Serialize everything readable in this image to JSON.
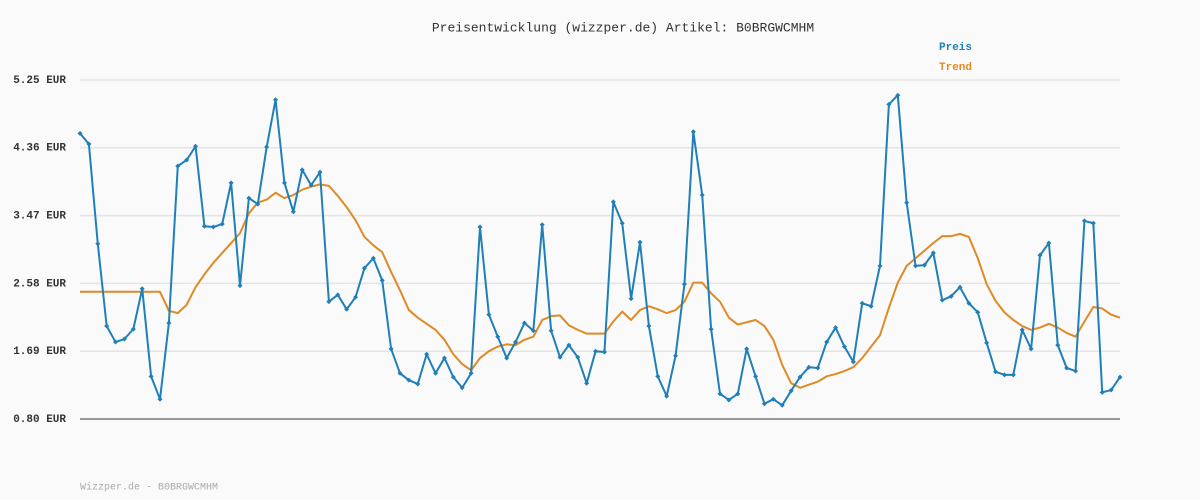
{
  "chart_data": {
    "type": "line",
    "title": "Preisentwicklung (wizzper.de) Artikel: B0BRGWCMHM",
    "footer": "Wizzper.de - B0BRGWCMHM",
    "ylim": [
      0.8,
      5.25
    ],
    "yticks": [
      {
        "value": 0.8,
        "label": "0.80 EUR"
      },
      {
        "value": 1.69,
        "label": "1.69 EUR"
      },
      {
        "value": 2.58,
        "label": "2.58 EUR"
      },
      {
        "value": 3.47,
        "label": "3.47 EUR"
      },
      {
        "value": 4.36,
        "label": "4.36 EUR"
      },
      {
        "value": 5.25,
        "label": "5.25 EUR"
      }
    ],
    "grid": true,
    "legend": "top-right",
    "series": [
      {
        "name": "Preis",
        "color": "#1f7fb8",
        "markers": true,
        "values": [
          4.55,
          4.41,
          3.1,
          2.02,
          1.81,
          1.85,
          1.98,
          2.51,
          1.36,
          1.06,
          2.06,
          4.12,
          4.2,
          4.38,
          3.33,
          3.32,
          3.36,
          3.9,
          2.55,
          3.7,
          3.62,
          4.37,
          4.99,
          3.9,
          3.52,
          4.07,
          3.87,
          4.04,
          2.34,
          2.43,
          2.24,
          2.4,
          2.78,
          2.91,
          2.62,
          1.72,
          1.4,
          1.31,
          1.26,
          1.65,
          1.4,
          1.6,
          1.35,
          1.21,
          1.4,
          3.32,
          2.17,
          1.88,
          1.6,
          1.81,
          2.06,
          1.96,
          3.35,
          1.96,
          1.61,
          1.77,
          1.61,
          1.27,
          1.69,
          1.68,
          3.65,
          3.37,
          2.38,
          3.12,
          2.02,
          1.36,
          1.1,
          1.63,
          2.57,
          4.57,
          3.74,
          1.98,
          1.13,
          1.05,
          1.13,
          1.72,
          1.36,
          1.0,
          1.06,
          0.98,
          1.17,
          1.35,
          1.48,
          1.47,
          1.81,
          2.0,
          1.75,
          1.55,
          2.32,
          2.28,
          2.81,
          4.93,
          5.05,
          3.64,
          2.81,
          2.82,
          2.98,
          2.36,
          2.41,
          2.53,
          2.32,
          2.2,
          1.8,
          1.42,
          1.38,
          1.38,
          1.97,
          1.72,
          2.95,
          3.11,
          1.77,
          1.47,
          1.43,
          3.4,
          3.37,
          1.15,
          1.18,
          1.35
        ]
      },
      {
        "name": "Trend",
        "color": "#e08a25",
        "markers": false,
        "values": [
          2.47,
          2.47,
          2.47,
          2.47,
          2.47,
          2.47,
          2.47,
          2.47,
          2.47,
          2.47,
          2.22,
          2.19,
          2.3,
          2.53,
          2.7,
          2.85,
          2.98,
          3.11,
          3.24,
          3.5,
          3.64,
          3.68,
          3.77,
          3.7,
          3.74,
          3.81,
          3.85,
          3.88,
          3.86,
          3.73,
          3.58,
          3.41,
          3.19,
          3.08,
          2.99,
          2.73,
          2.49,
          2.23,
          2.13,
          2.05,
          1.97,
          1.84,
          1.65,
          1.52,
          1.44,
          1.6,
          1.69,
          1.75,
          1.78,
          1.77,
          1.84,
          1.88,
          2.1,
          2.15,
          2.16,
          2.03,
          1.97,
          1.92,
          1.92,
          1.92,
          2.08,
          2.21,
          2.1,
          2.23,
          2.28,
          2.24,
          2.19,
          2.23,
          2.34,
          2.59,
          2.59,
          2.45,
          2.34,
          2.13,
          2.04,
          2.07,
          2.1,
          2.02,
          1.84,
          1.51,
          1.27,
          1.21,
          1.25,
          1.29,
          1.36,
          1.39,
          1.43,
          1.48,
          1.6,
          1.75,
          1.9,
          2.26,
          2.59,
          2.81,
          2.91,
          3.01,
          3.11,
          3.2,
          3.2,
          3.23,
          3.19,
          2.91,
          2.57,
          2.35,
          2.2,
          2.1,
          2.02,
          1.97,
          2.0,
          2.05,
          2.0,
          1.93,
          1.88,
          2.08,
          2.27,
          2.25,
          2.17,
          2.13
        ]
      }
    ]
  }
}
